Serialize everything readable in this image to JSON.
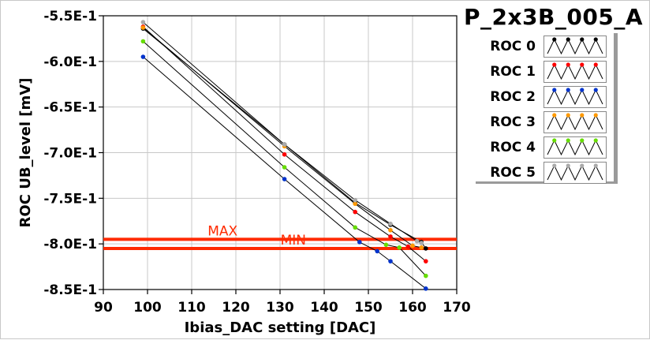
{
  "chart_data": {
    "type": "line",
    "title": "P_2x3B_005_A",
    "xlabel": "Ibias_DAC setting [DAC]",
    "ylabel": "ROC UB_level [mV]",
    "xlim": [
      90,
      170
    ],
    "ylim": [
      -0.85,
      -0.55
    ],
    "xticks": [
      90,
      100,
      110,
      120,
      130,
      140,
      150,
      160,
      170
    ],
    "yticks": [
      -0.55,
      -0.6,
      -0.65,
      -0.7,
      -0.75,
      -0.8,
      -0.85
    ],
    "ytick_labels": [
      "-5.5E-1",
      "-6.0E-1",
      "-6.5E-1",
      "-7.0E-1",
      "-7.5E-1",
      "-8.0E-1",
      "-8.5E-1"
    ],
    "grid": true,
    "legend_position": "top-right",
    "series": [
      {
        "name": "ROC 0",
        "color": "#000000",
        "points": [
          [
            99,
            -0.564
          ],
          [
            131,
            -0.691
          ],
          [
            147,
            -0.755
          ],
          [
            155,
            -0.779
          ],
          [
            162,
            -0.798
          ],
          [
            163,
            -0.805
          ]
        ]
      },
      {
        "name": "ROC 1",
        "color": "#ff0000",
        "points": [
          [
            99,
            -0.562
          ],
          [
            131,
            -0.702
          ],
          [
            147,
            -0.765
          ],
          [
            155,
            -0.792
          ],
          [
            159,
            -0.803
          ],
          [
            163,
            -0.819
          ]
        ]
      },
      {
        "name": "ROC 2",
        "color": "#0033cc",
        "points": [
          [
            99,
            -0.595
          ],
          [
            131,
            -0.729
          ],
          [
            148,
            -0.798
          ],
          [
            152,
            -0.808
          ],
          [
            155,
            -0.819
          ],
          [
            163,
            -0.849
          ]
        ]
      },
      {
        "name": "ROC 3",
        "color": "#ff9900",
        "points": [
          [
            99,
            -0.563
          ],
          [
            131,
            -0.693
          ],
          [
            147,
            -0.756
          ],
          [
            155,
            -0.785
          ],
          [
            160,
            -0.802
          ],
          [
            162,
            -0.804
          ]
        ]
      },
      {
        "name": "ROC 4",
        "color": "#66dd00",
        "points": [
          [
            99,
            -0.578
          ],
          [
            131,
            -0.716
          ],
          [
            147,
            -0.782
          ],
          [
            154,
            -0.801
          ],
          [
            157,
            -0.804
          ],
          [
            163,
            -0.835
          ]
        ]
      },
      {
        "name": "ROC 5",
        "color": "#aaaaaa",
        "points": [
          [
            99,
            -0.557
          ],
          [
            131,
            -0.691
          ],
          [
            147,
            -0.752
          ],
          [
            155,
            -0.778
          ],
          [
            161,
            -0.797
          ],
          [
            162,
            -0.799
          ]
        ]
      }
    ],
    "reference_lines": [
      {
        "y": -0.795,
        "color": "#ff2a00",
        "label": "MAX",
        "label_x": 117
      },
      {
        "y": -0.805,
        "color": "#ff2a00",
        "label": "MIN",
        "label_x": 133
      }
    ]
  }
}
